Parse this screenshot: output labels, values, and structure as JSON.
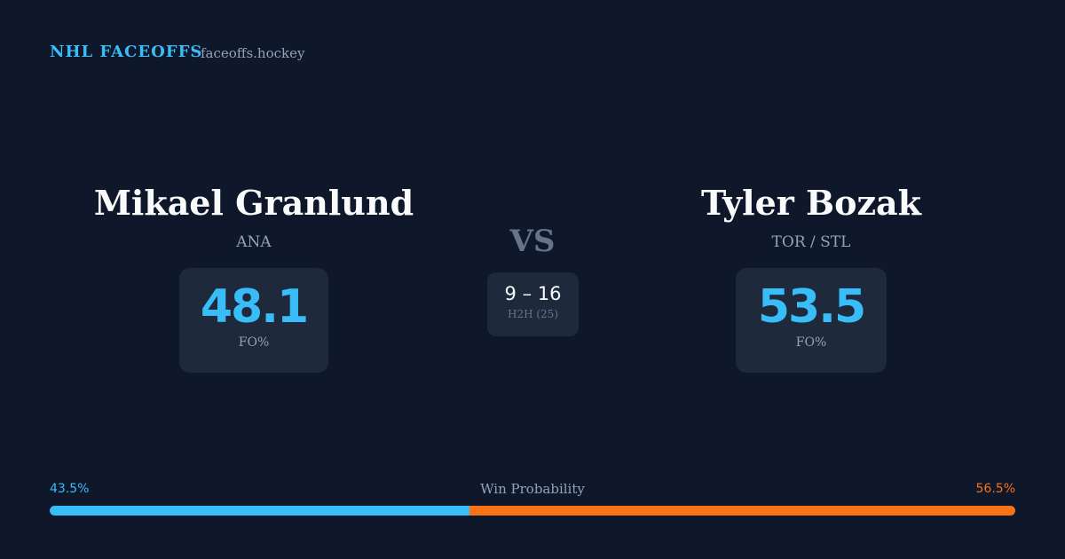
{
  "header": {
    "brand": "NHL FACEOFFS",
    "site": "faceoffs.hockey"
  },
  "players": [
    {
      "name": "Mikael Granlund",
      "team": "ANA",
      "stat": "48.1",
      "stat_label": "FO%"
    },
    {
      "name": "Tyler Bozak",
      "team": "TOR / STL",
      "stat": "53.5",
      "stat_label": "FO%"
    }
  ],
  "versus": "VS",
  "h2h": {
    "score": "9 – 16",
    "label": "H2H (25)"
  },
  "win_probability": {
    "title": "Win Probability",
    "left": {
      "value": 43.5,
      "label": "43.5%",
      "color": "#38bdf8"
    },
    "right": {
      "value": 56.5,
      "label": "56.5%",
      "color": "#f97316"
    }
  }
}
